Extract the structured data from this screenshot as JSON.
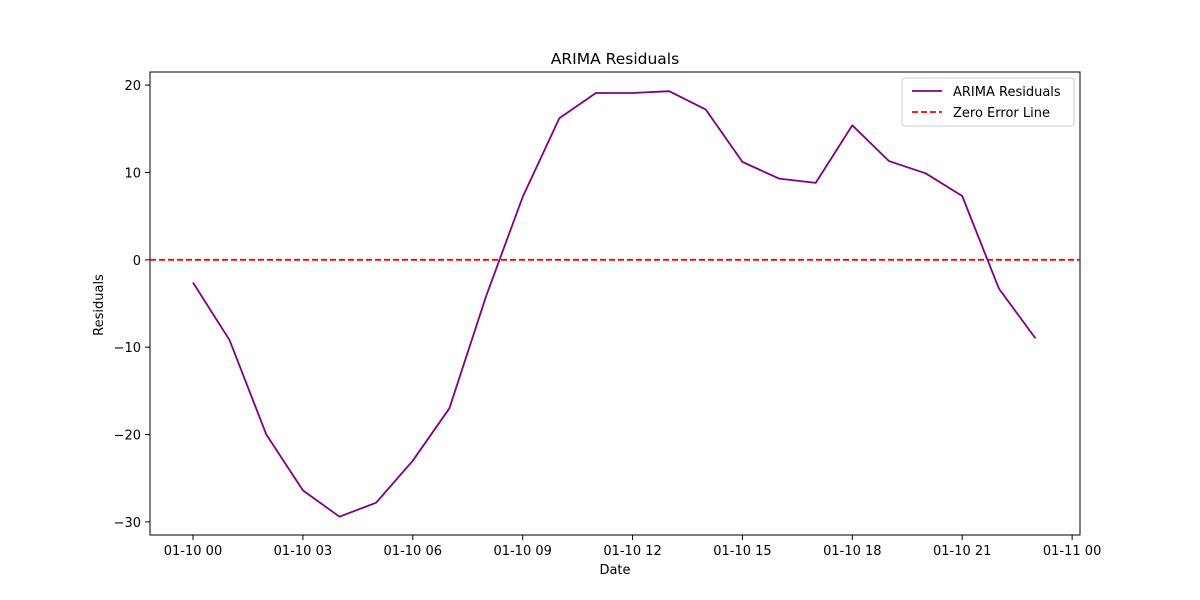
{
  "chart_data": {
    "type": "line",
    "title": "ARIMA Residuals",
    "xlabel": "Date",
    "ylabel": "Residuals",
    "x_ticks": [
      "01-10 00",
      "01-10 03",
      "01-10 06",
      "01-10 09",
      "01-10 12",
      "01-10 15",
      "01-10 18",
      "01-10 21",
      "01-11 00"
    ],
    "y_ticks": [
      20,
      10,
      0,
      -10,
      -20,
      -30
    ],
    "ylim": [
      -31.5,
      21.5
    ],
    "xlim": [
      "2024-01-09 23:00",
      "2024-01-11 00:05"
    ],
    "legend_position": "top-right",
    "grid": false,
    "series": [
      {
        "name": "ARIMA Residuals",
        "color": "#800080",
        "style": "solid",
        "x": [
          "01-10 00",
          "01-10 01",
          "01-10 02",
          "01-10 03",
          "01-10 04",
          "01-10 05",
          "01-10 06",
          "01-10 07",
          "01-10 08",
          "01-10 09",
          "01-10 10",
          "01-10 11",
          "01-10 12",
          "01-10 13",
          "01-10 14",
          "01-10 15",
          "01-10 16",
          "01-10 17",
          "01-10 18",
          "01-10 19",
          "01-10 20",
          "01-10 21",
          "01-10 22",
          "01-10 23"
        ],
        "values": [
          -2.6,
          -9.2,
          -20.0,
          -26.4,
          -29.4,
          -27.8,
          -23.0,
          -17.0,
          -4.2,
          7.2,
          16.2,
          19.1,
          19.1,
          19.3,
          17.2,
          11.2,
          9.3,
          8.8,
          15.4,
          11.3,
          9.9,
          7.3,
          -3.3,
          -9.0
        ]
      },
      {
        "name": "Zero Error Line",
        "color": "#ff0000",
        "style": "dashed",
        "y": 0
      }
    ]
  }
}
